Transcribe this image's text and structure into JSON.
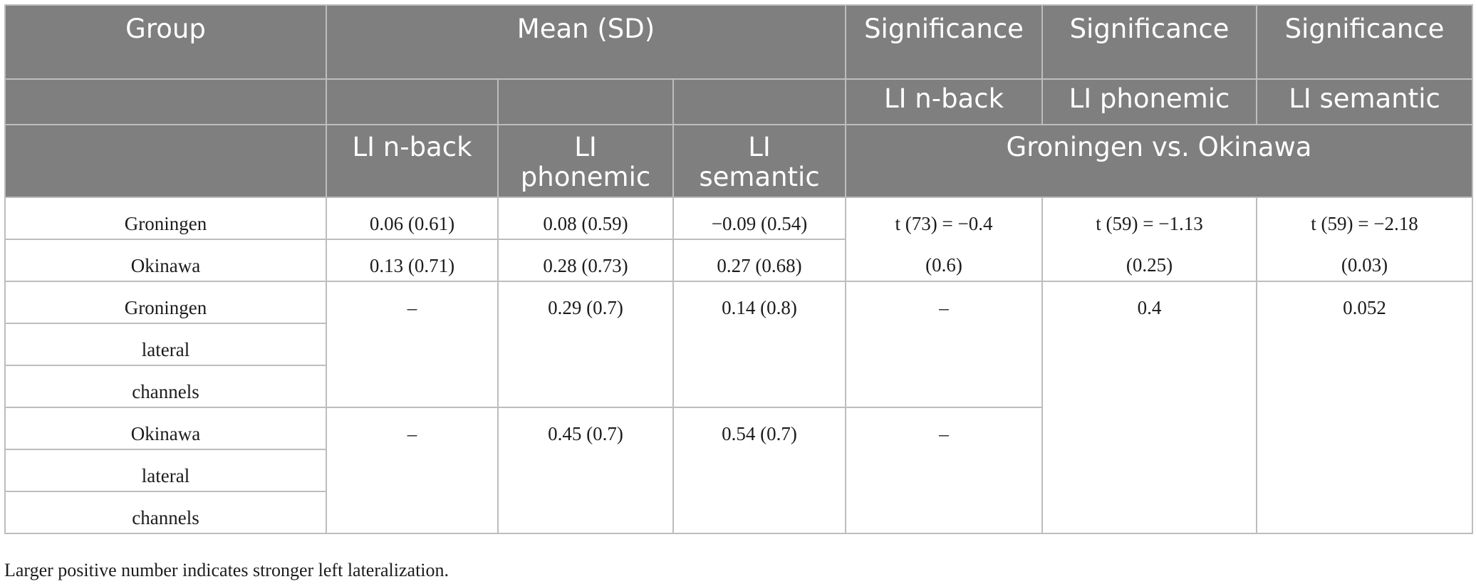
{
  "table": {
    "headers": {
      "group": "Group",
      "mean_sd": "Mean (SD)",
      "sig1": "Significance",
      "sig2": "Significance",
      "sig3": "Significance",
      "sub_sig1": "LI n-back",
      "sub_sig2": "LI phonemic",
      "sub_sig3": "LI semantic",
      "col_nback": "LI n-back",
      "col_phon": "LI\nphonemic",
      "col_sem": "LI\nsemantic",
      "comparison": "Groningen vs. Okinawa"
    },
    "rows": {
      "gro": {
        "group": "Groningen",
        "nback": "0.06 (0.61)",
        "phon": "0.08 (0.59)",
        "sem": "−0.09 (0.54)"
      },
      "oki": {
        "group": "Okinawa",
        "nback": "0.13 (0.71)",
        "phon": "0.28 (0.73)",
        "sem": "0.27 (0.68)"
      },
      "sig_t": {
        "nback": "t (73) = −0.4",
        "phon": "t (59) = −1.13",
        "sem": "t (59) = −2.18"
      },
      "sig_p": {
        "nback": "(0.6)",
        "phon": "(0.25)",
        "sem": "(0.03)"
      },
      "gro_lat": {
        "group": [
          "Groningen",
          "lateral",
          "channels"
        ],
        "nback": "–",
        "phon": "0.29 (0.7)",
        "sem": "0.14 (0.8)",
        "sig_nback": "–",
        "sig_phon": "0.4",
        "sig_sem": "0.052"
      },
      "oki_lat": {
        "group": [
          "Okinawa",
          "lateral",
          "channels"
        ],
        "nback": "–",
        "phon": "0.45 (0.7)",
        "sem": "0.54 (0.7)",
        "sig_nback": "–"
      }
    }
  },
  "footnote": "Larger positive number indicates stronger left lateralization."
}
